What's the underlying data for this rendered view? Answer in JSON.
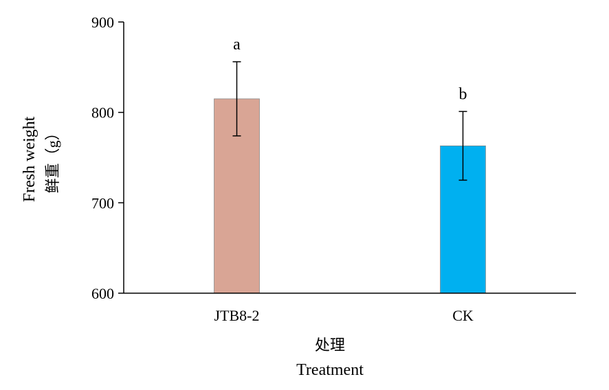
{
  "chart_data": {
    "type": "bar",
    "categories": [
      "JTB8-2",
      "CK"
    ],
    "values": [
      815,
      763
    ],
    "error": [
      41,
      38
    ],
    "significance": [
      "a",
      "b"
    ],
    "colors": [
      "#D9A595",
      "#00B0F0"
    ],
    "ylim": [
      600,
      900
    ],
    "yticks": [
      600,
      700,
      800,
      900
    ],
    "ylabel_cn": "鲜重（g）",
    "ylabel_en": "Fresh weight",
    "xlabel_cn": "处理",
    "xlabel_en": "Treatment"
  }
}
